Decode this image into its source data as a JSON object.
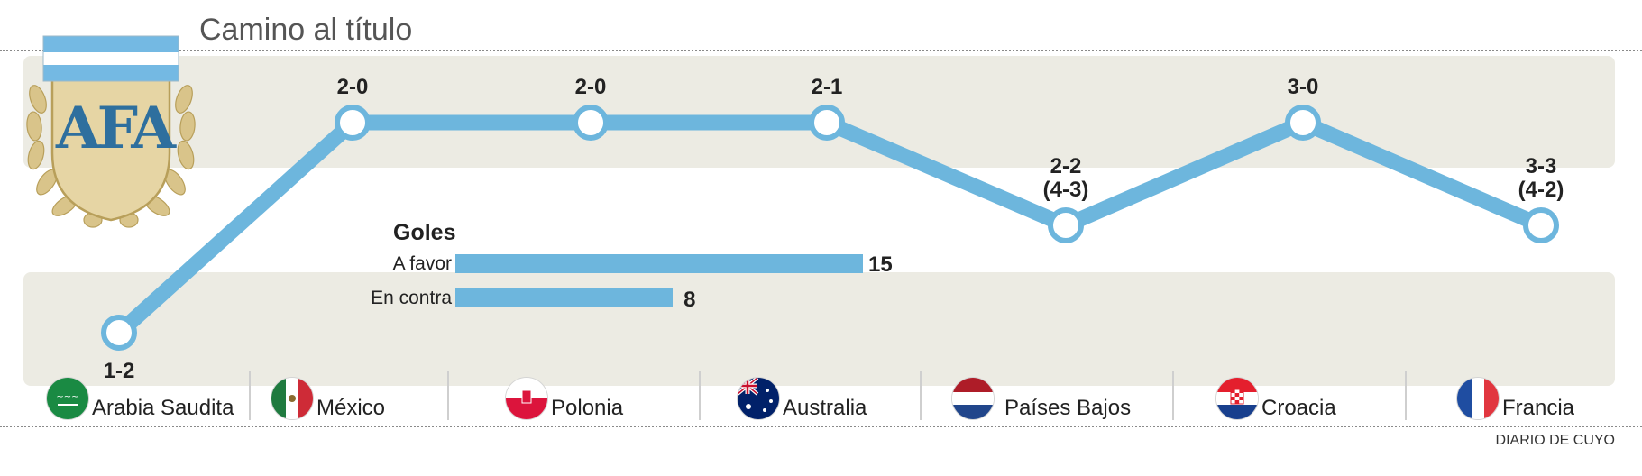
{
  "header": {
    "title": "Camino al título"
  },
  "logo": {
    "text": "AFA",
    "icon": "afa-crest-icon"
  },
  "colors": {
    "line": "#6db6dd",
    "band": "#ecebe3",
    "marker_fill": "#ffffff"
  },
  "chart_data": {
    "type": "line",
    "title": "Camino al título",
    "categories": [
      "Arabia Saudita",
      "México",
      "Polonia",
      "Australia",
      "Países Bajos",
      "Croacia",
      "Francia"
    ],
    "series": [
      {
        "values": [
          "loss",
          "win",
          "win",
          "win",
          "draw-penalties-win",
          "win",
          "draw-penalties-win"
        ]
      }
    ],
    "levels": {
      "loss": 0,
      "draw": 1,
      "win": 2
    },
    "level_values": [
      0,
      2,
      2,
      2,
      1,
      2,
      1
    ],
    "scores": [
      {
        "line1": "1-2",
        "line2": ""
      },
      {
        "line1": "2-0",
        "line2": ""
      },
      {
        "line1": "2-0",
        "line2": ""
      },
      {
        "line1": "2-1",
        "line2": ""
      },
      {
        "line1": "2-2",
        "line2": "(4-3)"
      },
      {
        "line1": "3-0",
        "line2": ""
      },
      {
        "line1": "3-3",
        "line2": "(4-2)"
      }
    ],
    "bands": [
      "wins",
      "losses"
    ],
    "goals": {
      "title": "Goles",
      "bars": [
        {
          "label": "A favor",
          "value": 15
        },
        {
          "label": "En contra",
          "value": 8
        }
      ],
      "max": 15
    }
  },
  "teams": [
    {
      "name": "Arabia Saudita",
      "flag": "saudi-arabia-flag-icon"
    },
    {
      "name": "México",
      "flag": "mexico-flag-icon"
    },
    {
      "name": "Polonia",
      "flag": "poland-flag-icon"
    },
    {
      "name": "Australia",
      "flag": "australia-flag-icon"
    },
    {
      "name": "Países Bajos",
      "flag": "netherlands-flag-icon"
    },
    {
      "name": "Croacia",
      "flag": "croatia-flag-icon"
    },
    {
      "name": "Francia",
      "flag": "france-flag-icon"
    }
  ],
  "footer": {
    "source": "DIARIO DE CUYO"
  }
}
